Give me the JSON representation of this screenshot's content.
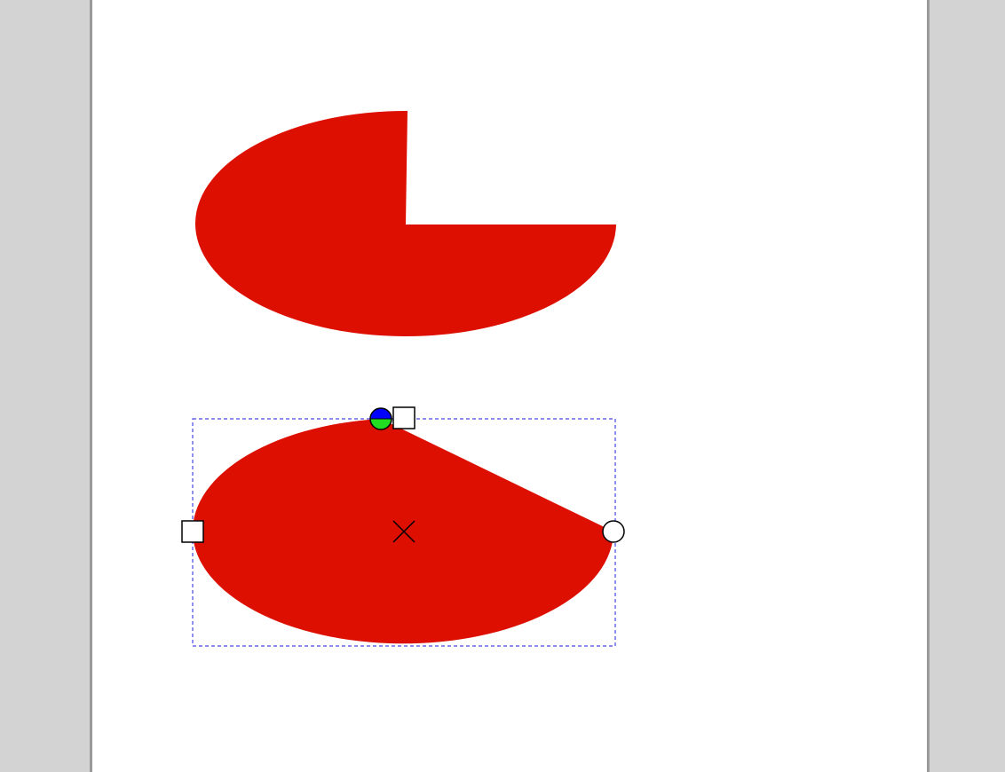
{
  "colors": {
    "desk": "#d3d3d3",
    "page": "#ffffff",
    "shape_fill": "#dc0f00",
    "bbox_stroke": "#4646e6",
    "handle_fill": "#ffffff",
    "handle_stroke": "#000000",
    "rotate_handle_top": "#0000ff",
    "rotate_handle_bottom": "#22dd22"
  },
  "icons": {
    "start_handle": "square-handle-icon",
    "end_handle": "circle-handle-icon",
    "rotation_handle": "split-circle-handle-icon",
    "center_marker": "x-cross-icon"
  }
}
